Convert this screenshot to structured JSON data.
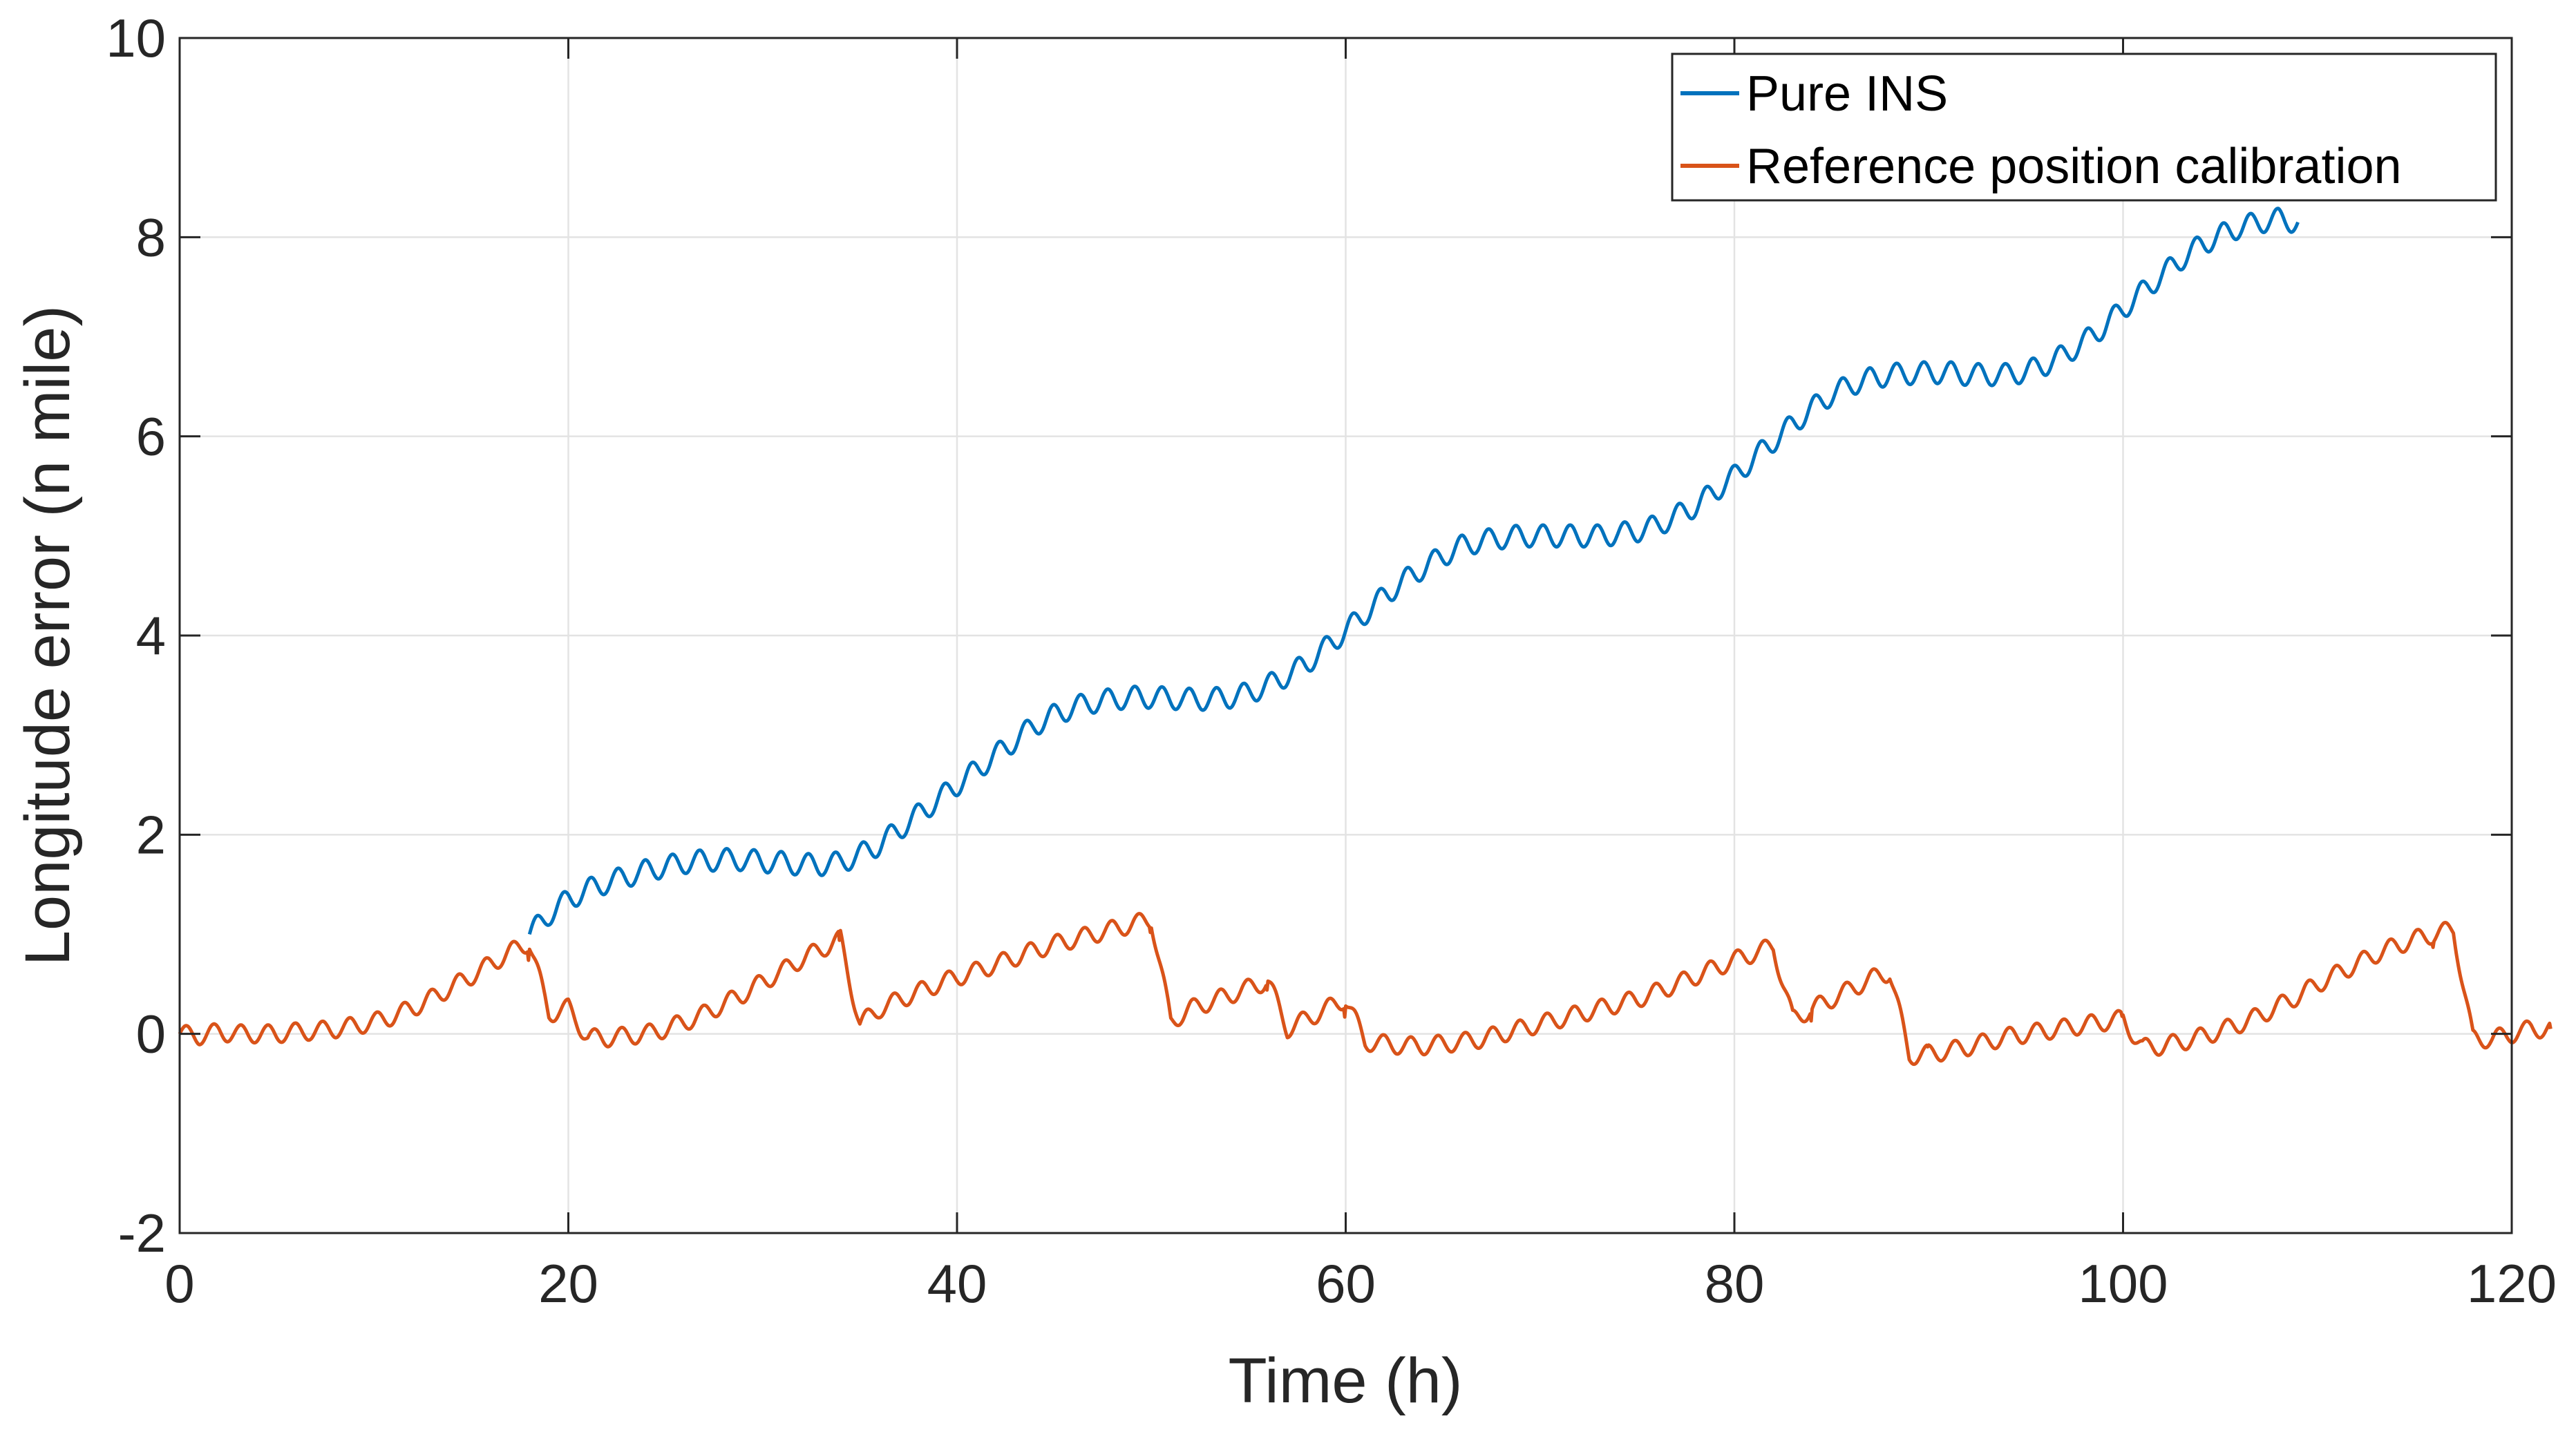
{
  "chart_data": {
    "type": "line",
    "title": "",
    "xlabel": "Time (h)",
    "ylabel": "Longitude error (n mile)",
    "xlim": [
      0,
      120
    ],
    "ylim": [
      -2,
      10
    ],
    "xticks": [
      0,
      20,
      40,
      60,
      80,
      100,
      120
    ],
    "yticks": [
      -2,
      0,
      2,
      4,
      6,
      8,
      10
    ],
    "grid": true,
    "legend_position": "top-right",
    "x_step_h": 1,
    "series": [
      {
        "name": "Pure INS",
        "color": "#0072BD",
        "x_start": 18,
        "values": [
          1.0,
          1.2,
          1.35,
          1.45,
          1.52,
          1.58,
          1.64,
          1.68,
          1.72,
          1.74,
          1.75,
          1.75,
          1.73,
          1.72,
          1.7,
          1.7,
          1.72,
          1.8,
          1.9,
          2.05,
          2.2,
          2.35,
          2.5,
          2.65,
          2.8,
          2.95,
          3.1,
          3.2,
          3.28,
          3.33,
          3.36,
          3.38,
          3.38,
          3.37,
          3.36,
          3.36,
          3.38,
          3.42,
          3.5,
          3.6,
          3.72,
          3.88,
          4.05,
          4.22,
          4.4,
          4.55,
          4.68,
          4.8,
          4.9,
          4.95,
          4.98,
          5.0,
          5.0,
          5.0,
          5.0,
          5.0,
          5.02,
          5.05,
          5.1,
          5.2,
          5.3,
          5.45,
          5.6,
          5.78,
          5.95,
          6.12,
          6.28,
          6.42,
          6.52,
          6.58,
          6.62,
          6.63,
          6.64,
          6.64,
          6.62,
          6.62,
          6.62,
          6.65,
          6.72,
          6.82,
          6.95,
          7.1,
          7.28,
          7.45,
          7.62,
          7.78,
          7.92,
          8.02,
          8.1,
          8.15,
          8.18,
          8.15
        ],
        "oscillation_amplitude": 0.11
      },
      {
        "name": "Reference position calibration",
        "color": "#D95319",
        "x_start": 0,
        "values": [
          0.0,
          -0.02,
          0.02,
          0.0,
          0.0,
          0.0,
          0.02,
          0.03,
          0.05,
          0.08,
          0.12,
          0.18,
          0.26,
          0.36,
          0.47,
          0.58,
          0.7,
          0.82,
          0.92,
          0.2,
          0.26,
          -0.04,
          -0.04,
          -0.02,
          0.0,
          0.05,
          0.12,
          0.2,
          0.3,
          0.4,
          0.52,
          0.63,
          0.75,
          0.85,
          0.95,
          0.1,
          0.25,
          0.34,
          0.42,
          0.5,
          0.57,
          0.63,
          0.7,
          0.77,
          0.84,
          0.9,
          0.95,
          1.0,
          1.05,
          1.1,
          1.15,
          0.12,
          0.25,
          0.32,
          0.39,
          0.46,
          0.53,
          0.05,
          0.15,
          0.25,
          0.35,
          -0.08,
          -0.1,
          -0.12,
          -0.12,
          -0.1,
          -0.08,
          -0.05,
          0.0,
          0.05,
          0.1,
          0.15,
          0.2,
          0.25,
          0.3,
          0.35,
          0.42,
          0.5,
          0.58,
          0.66,
          0.74,
          0.81,
          0.88,
          0.15,
          0.25,
          0.35,
          0.45,
          0.55,
          0.62,
          -0.22,
          -0.2,
          -0.17,
          -0.13,
          -0.08,
          -0.03,
          0.0,
          0.03,
          0.06,
          0.09,
          0.12,
          0.15,
          -0.14,
          -0.12,
          -0.08,
          -0.03,
          0.03,
          0.1,
          0.18,
          0.28,
          0.38,
          0.5,
          0.6,
          0.7,
          0.8,
          0.88,
          0.95,
          1.0,
          1.05,
          -0.05,
          -0.05,
          0.0,
          0.05,
          0.05
        ],
        "oscillation_amplitude": 0.09,
        "reset_times": [
          18,
          34,
          50,
          56,
          60,
          84,
          90,
          100,
          116
        ]
      }
    ]
  }
}
